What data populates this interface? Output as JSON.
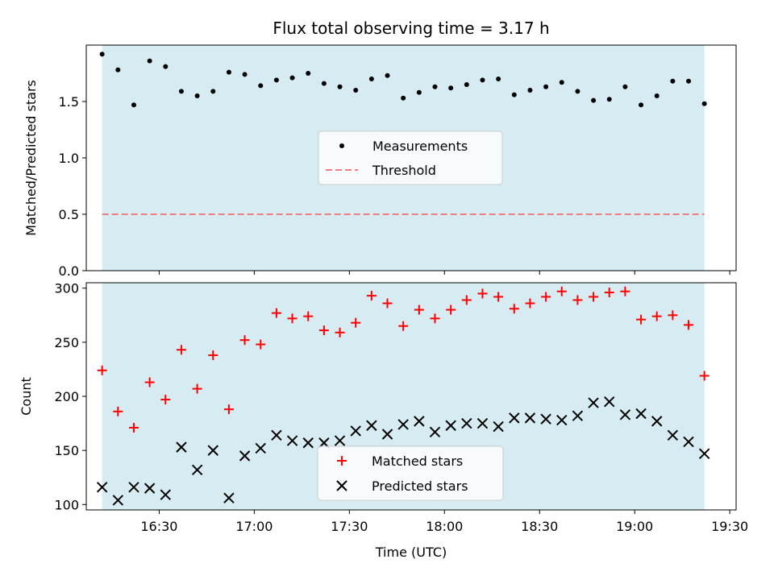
{
  "chart_data": [
    {
      "type": "scatter",
      "title": "Flux total observing time = 3.17 h",
      "ylabel": "Matched/Predicted stars",
      "xlim": [
        "16:07",
        "19:32"
      ],
      "ylim": [
        0,
        2.0
      ],
      "yticks": [
        "0.0",
        "0.5",
        "1.0",
        "1.5"
      ],
      "shaded_interval": [
        "16:12",
        "19:22"
      ],
      "colors": {
        "shade": "#add8e6",
        "measurements": "#000000",
        "threshold": "#f08080"
      },
      "legend": {
        "placement": "center",
        "entries": [
          "Measurements",
          "Threshold"
        ]
      },
      "threshold": {
        "name": "Threshold",
        "value": 0.5
      },
      "series": [
        {
          "name": "Measurements",
          "marker": "dot",
          "x": [
            "16:12",
            "16:17",
            "16:22",
            "16:27",
            "16:32",
            "16:37",
            "16:42",
            "16:47",
            "16:52",
            "16:57",
            "17:02",
            "17:07",
            "17:12",
            "17:17",
            "17:22",
            "17:27",
            "17:32",
            "17:37",
            "17:42",
            "17:47",
            "17:52",
            "17:57",
            "18:02",
            "18:07",
            "18:12",
            "18:17",
            "18:22",
            "18:27",
            "18:32",
            "18:37",
            "18:42",
            "18:47",
            "18:52",
            "18:57",
            "19:02",
            "19:07",
            "19:12",
            "19:17",
            "19:22"
          ],
          "y": [
            1.92,
            1.78,
            1.47,
            1.86,
            1.81,
            1.59,
            1.55,
            1.59,
            1.76,
            1.74,
            1.64,
            1.69,
            1.71,
            1.75,
            1.66,
            1.63,
            1.6,
            1.7,
            1.73,
            1.53,
            1.58,
            1.63,
            1.62,
            1.65,
            1.69,
            1.7,
            1.56,
            1.6,
            1.63,
            1.67,
            1.59,
            1.51,
            1.52,
            1.63,
            1.47,
            1.55,
            1.68,
            1.68,
            1.48
          ]
        }
      ]
    },
    {
      "type": "scatter",
      "xlabel": "Time (UTC)",
      "ylabel": "Count",
      "xlim": [
        "16:07",
        "19:32"
      ],
      "ylim": [
        95,
        305
      ],
      "xticks": [
        "16:30",
        "17:00",
        "17:30",
        "18:00",
        "18:30",
        "19:00",
        "19:30"
      ],
      "yticks": [
        "100",
        "150",
        "200",
        "250",
        "300"
      ],
      "shaded_interval": [
        "16:12",
        "19:22"
      ],
      "colors": {
        "shade": "#add8e6",
        "matched": "#ff0000",
        "predicted": "#000000"
      },
      "legend": {
        "placement": "lower center",
        "entries": [
          "Matched stars",
          "Predicted stars"
        ]
      },
      "series": [
        {
          "name": "Matched stars",
          "marker": "plus",
          "x": [
            "16:12",
            "16:17",
            "16:22",
            "16:27",
            "16:32",
            "16:37",
            "16:42",
            "16:47",
            "16:52",
            "16:57",
            "17:02",
            "17:07",
            "17:12",
            "17:17",
            "17:22",
            "17:27",
            "17:32",
            "17:37",
            "17:42",
            "17:47",
            "17:52",
            "17:57",
            "18:02",
            "18:07",
            "18:12",
            "18:17",
            "18:22",
            "18:27",
            "18:32",
            "18:37",
            "18:42",
            "18:47",
            "18:52",
            "18:57",
            "19:02",
            "19:07",
            "19:12",
            "19:17",
            "19:22"
          ],
          "y": [
            224,
            186,
            171,
            213,
            197,
            243,
            207,
            238,
            188,
            252,
            248,
            277,
            272,
            274,
            261,
            259,
            268,
            293,
            286,
            265,
            280,
            272,
            280,
            289,
            295,
            292,
            281,
            286,
            292,
            297,
            289,
            292,
            296,
            297,
            271,
            274,
            275,
            266,
            219
          ]
        },
        {
          "name": "Predicted stars",
          "marker": "x",
          "x": [
            "16:12",
            "16:17",
            "16:22",
            "16:27",
            "16:32",
            "16:37",
            "16:42",
            "16:47",
            "16:52",
            "16:57",
            "17:02",
            "17:07",
            "17:12",
            "17:17",
            "17:22",
            "17:27",
            "17:32",
            "17:37",
            "17:42",
            "17:47",
            "17:52",
            "17:57",
            "18:02",
            "18:07",
            "18:12",
            "18:17",
            "18:22",
            "18:27",
            "18:32",
            "18:37",
            "18:42",
            "18:47",
            "18:52",
            "18:57",
            "19:02",
            "19:07",
            "19:12",
            "19:17",
            "19:22"
          ],
          "y": [
            116,
            104,
            116,
            115,
            109,
            153,
            132,
            150,
            106,
            145,
            152,
            164,
            159,
            157,
            157,
            159,
            168,
            173,
            165,
            174,
            177,
            167,
            173,
            175,
            175,
            172,
            180,
            180,
            179,
            178,
            182,
            194,
            195,
            183,
            184,
            177,
            164,
            158,
            147
          ]
        }
      ]
    }
  ]
}
